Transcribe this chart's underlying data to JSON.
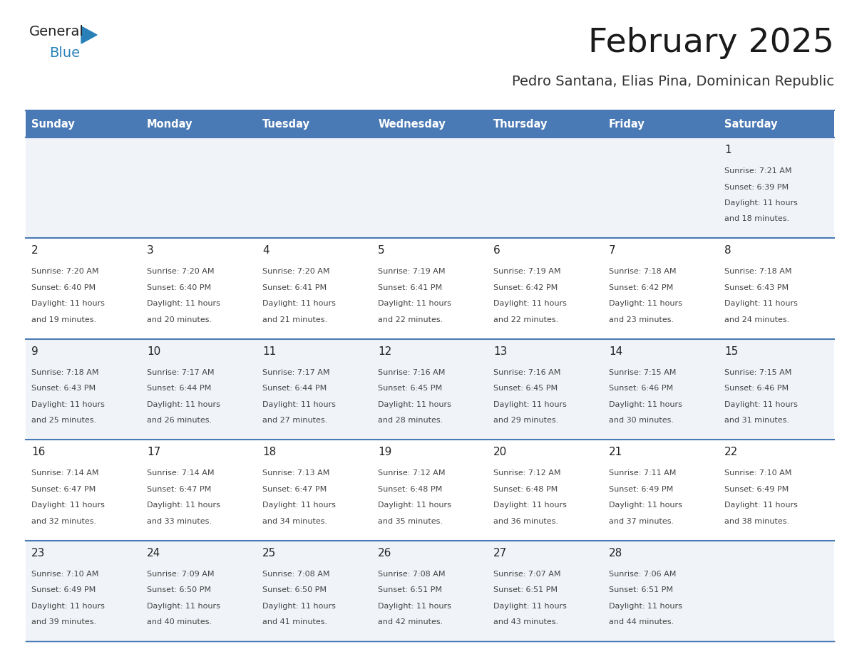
{
  "title": "February 2025",
  "subtitle": "Pedro Santana, Elias Pina, Dominican Republic",
  "days_of_week": [
    "Sunday",
    "Monday",
    "Tuesday",
    "Wednesday",
    "Thursday",
    "Friday",
    "Saturday"
  ],
  "header_bg": "#4a7ab5",
  "header_text": "#ffffff",
  "row_bg_odd": "#f0f4f8",
  "row_bg_even": "#ffffff",
  "cell_text_color": "#444444",
  "day_num_color": "#222222",
  "divider_color": "#4a7ab5",
  "logo_general_color": "#222222",
  "logo_blue_color": "#2980b9",
  "calendar": [
    [
      null,
      null,
      null,
      null,
      null,
      null,
      1
    ],
    [
      2,
      3,
      4,
      5,
      6,
      7,
      8
    ],
    [
      9,
      10,
      11,
      12,
      13,
      14,
      15
    ],
    [
      16,
      17,
      18,
      19,
      20,
      21,
      22
    ],
    [
      23,
      24,
      25,
      26,
      27,
      28,
      null
    ]
  ],
  "sunrise": {
    "1": "7:21 AM",
    "2": "7:20 AM",
    "3": "7:20 AM",
    "4": "7:20 AM",
    "5": "7:19 AM",
    "6": "7:19 AM",
    "7": "7:18 AM",
    "8": "7:18 AM",
    "9": "7:18 AM",
    "10": "7:17 AM",
    "11": "7:17 AM",
    "12": "7:16 AM",
    "13": "7:16 AM",
    "14": "7:15 AM",
    "15": "7:15 AM",
    "16": "7:14 AM",
    "17": "7:14 AM",
    "18": "7:13 AM",
    "19": "7:12 AM",
    "20": "7:12 AM",
    "21": "7:11 AM",
    "22": "7:10 AM",
    "23": "7:10 AM",
    "24": "7:09 AM",
    "25": "7:08 AM",
    "26": "7:08 AM",
    "27": "7:07 AM",
    "28": "7:06 AM"
  },
  "sunset": {
    "1": "6:39 PM",
    "2": "6:40 PM",
    "3": "6:40 PM",
    "4": "6:41 PM",
    "5": "6:41 PM",
    "6": "6:42 PM",
    "7": "6:42 PM",
    "8": "6:43 PM",
    "9": "6:43 PM",
    "10": "6:44 PM",
    "11": "6:44 PM",
    "12": "6:45 PM",
    "13": "6:45 PM",
    "14": "6:46 PM",
    "15": "6:46 PM",
    "16": "6:47 PM",
    "17": "6:47 PM",
    "18": "6:47 PM",
    "19": "6:48 PM",
    "20": "6:48 PM",
    "21": "6:49 PM",
    "22": "6:49 PM",
    "23": "6:49 PM",
    "24": "6:50 PM",
    "25": "6:50 PM",
    "26": "6:51 PM",
    "27": "6:51 PM",
    "28": "6:51 PM"
  },
  "daylight_minutes": {
    "1": 18,
    "2": 19,
    "3": 20,
    "4": 21,
    "5": 22,
    "6": 22,
    "7": 23,
    "8": 24,
    "9": 25,
    "10": 26,
    "11": 27,
    "12": 28,
    "13": 29,
    "14": 30,
    "15": 31,
    "16": 32,
    "17": 33,
    "18": 34,
    "19": 35,
    "20": 36,
    "21": 37,
    "22": 38,
    "23": 39,
    "24": 40,
    "25": 41,
    "26": 42,
    "27": 43,
    "28": 44
  }
}
